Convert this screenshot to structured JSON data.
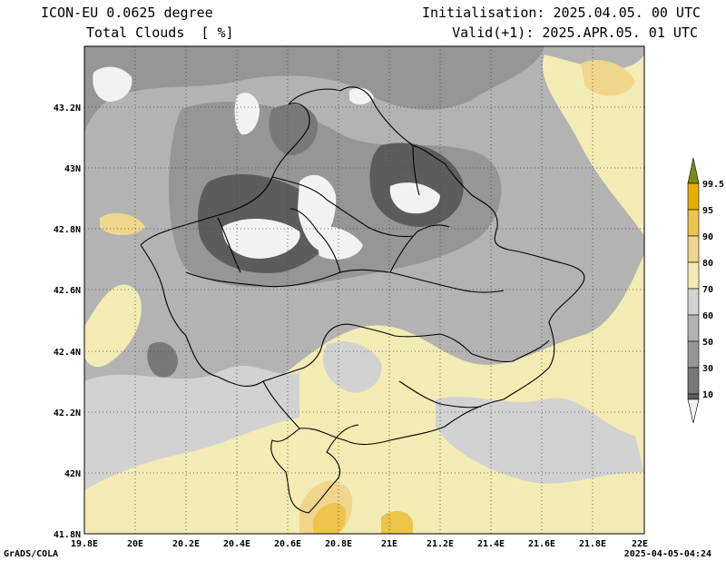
{
  "header": {
    "model": "ICON-EU 0.0625 degree",
    "variable": "Total Clouds  [ %]",
    "initialisation": "Initialisation: 2025.04.05. 00 UTC",
    "valid": "Valid(+1): 2025.APR.05. 01 UTC"
  },
  "axes": {
    "lon_ticks": [
      "19.8E",
      "20E",
      "20.2E",
      "20.4E",
      "20.6E",
      "20.8E",
      "21E",
      "21.2E",
      "21.4E",
      "21.6E",
      "21.8E",
      "22E"
    ],
    "lat_ticks": [
      "43.2N",
      "43N",
      "42.8N",
      "42.6N",
      "42.4N",
      "42.2N",
      "42N",
      "41.8N"
    ]
  },
  "colorbar": {
    "labels": [
      "99.5",
      "95",
      "90",
      "80",
      "70",
      "60",
      "50",
      "30",
      "10"
    ],
    "colors": [
      "#7a8c12",
      "#e6b000",
      "#edc34a",
      "#f0d58c",
      "#f2ecb4",
      "#d2d2d2",
      "#b3b3b3",
      "#969696",
      "#787878",
      "#5c5c5c",
      "#f2f2f2"
    ]
  },
  "footer": {
    "credit": "GrADS/COLA",
    "timestamp": "2025-04-05-04:24"
  }
}
